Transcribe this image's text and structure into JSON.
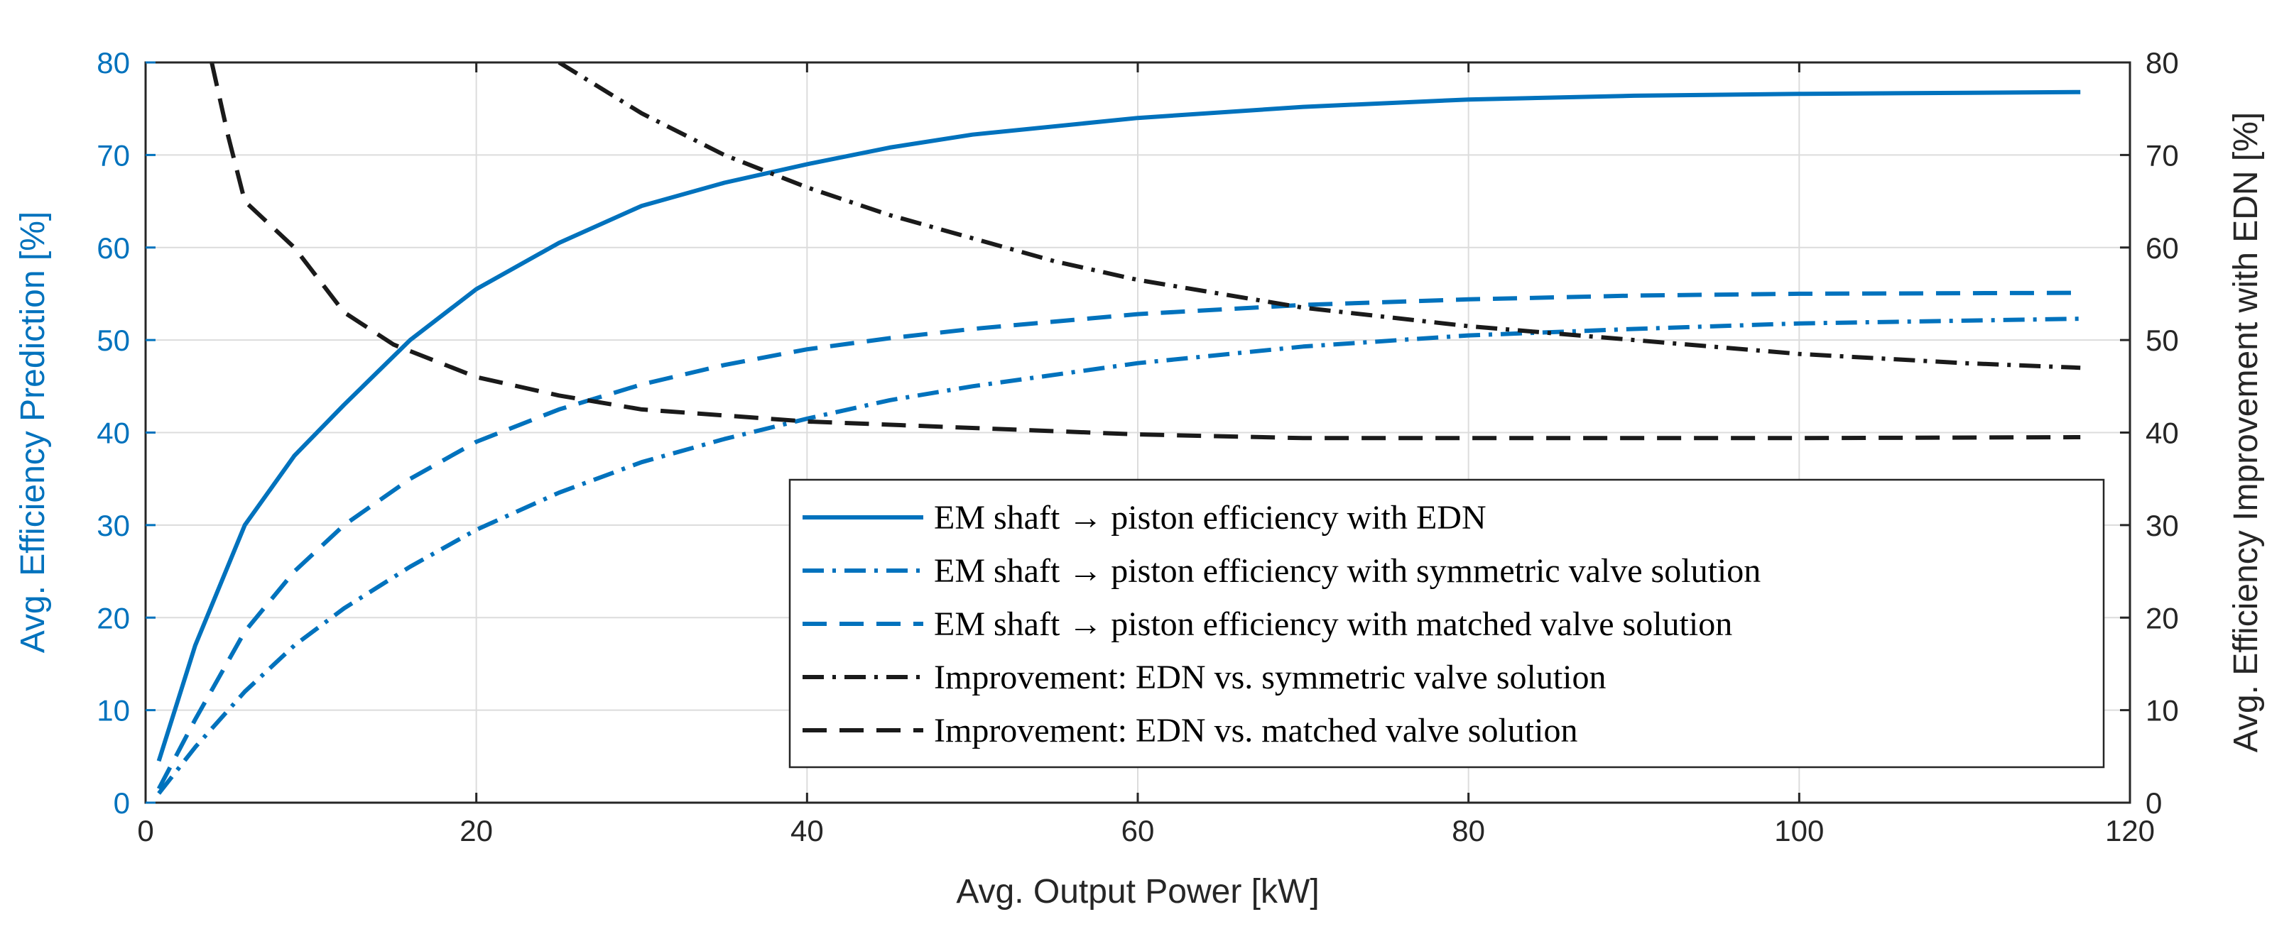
{
  "chart_data": {
    "type": "line",
    "title": "",
    "xlabel": "Avg. Output Power [kW]",
    "ylabel_left": "Avg. Efficiency Prediction [%]",
    "ylabel_right": "Avg. Efficiency Improvement with EDN [%]",
    "xlim": [
      0,
      120
    ],
    "ylim_left": [
      0,
      80
    ],
    "ylim_right": [
      0,
      80
    ],
    "xticks": [
      "0",
      "20",
      "40",
      "60",
      "80",
      "100",
      "120"
    ],
    "yticks_left": [
      "0",
      "10",
      "20",
      "30",
      "40",
      "50",
      "60",
      "70",
      "80"
    ],
    "yticks_right": [
      "0",
      "10",
      "20",
      "30",
      "40",
      "50",
      "60",
      "70",
      "80"
    ],
    "grid": true,
    "legend_position": "lower-right",
    "colors": {
      "blue": "#0072BD",
      "black": "#1a1a1a"
    },
    "series": [
      {
        "name": "EM shaft → piston efficiency with EDN",
        "axis": "left",
        "color": "#0072BD",
        "dash": "solid",
        "x": [
          0.8,
          3,
          6,
          9,
          12,
          16,
          20,
          25,
          30,
          35,
          40,
          45,
          50,
          60,
          70,
          80,
          90,
          100,
          117
        ],
        "y": [
          4.5,
          17,
          30,
          37.5,
          43,
          50,
          55.5,
          60.5,
          64.5,
          67,
          69,
          70.8,
          72.2,
          74,
          75.2,
          76,
          76.4,
          76.6,
          76.8
        ]
      },
      {
        "name": "EM shaft → piston efficiency with symmetric valve solution",
        "axis": "left",
        "color": "#0072BD",
        "dash": "dashdot",
        "x": [
          0.8,
          3,
          6,
          9,
          12,
          16,
          20,
          25,
          30,
          35,
          40,
          45,
          50,
          60,
          70,
          80,
          90,
          100,
          117
        ],
        "y": [
          1,
          6,
          12,
          17,
          21,
          25.5,
          29.5,
          33.5,
          36.8,
          39.3,
          41.5,
          43.5,
          45,
          47.5,
          49.3,
          50.5,
          51.2,
          51.8,
          52.3
        ]
      },
      {
        "name": "EM shaft → piston efficiency with matched valve solution",
        "axis": "left",
        "color": "#0072BD",
        "dash": "dashed",
        "x": [
          0.8,
          3,
          6,
          9,
          12,
          16,
          20,
          25,
          30,
          35,
          40,
          45,
          50,
          60,
          70,
          80,
          90,
          100,
          117
        ],
        "y": [
          1.5,
          9,
          18.5,
          25,
          30,
          35,
          39,
          42.5,
          45.2,
          47.3,
          49,
          50.2,
          51.2,
          52.8,
          53.8,
          54.4,
          54.8,
          55,
          55.1
        ]
      },
      {
        "name": "Improvement: EDN vs. symmetric valve solution",
        "axis": "right",
        "color": "#1a1a1a",
        "dash": "dashdot",
        "x": [
          25,
          30,
          35,
          40,
          45,
          50,
          55,
          60,
          70,
          80,
          90,
          100,
          110,
          117
        ],
        "y": [
          80,
          74.5,
          70,
          66.5,
          63.5,
          61,
          58.5,
          56.5,
          53.5,
          51.5,
          50,
          48.5,
          47.5,
          47
        ]
      },
      {
        "name": "Improvement: EDN vs. matched valve solution",
        "axis": "right",
        "color": "#1a1a1a",
        "dash": "dashed",
        "x": [
          4,
          5,
          6,
          9,
          12,
          15,
          20,
          25,
          30,
          40,
          50,
          60,
          70,
          80,
          90,
          100,
          117
        ],
        "y": [
          80,
          72,
          65,
          60,
          53,
          49.5,
          46,
          44,
          42.5,
          41.2,
          40.5,
          39.8,
          39.4,
          39.4,
          39.4,
          39.4,
          39.5
        ]
      }
    ]
  }
}
